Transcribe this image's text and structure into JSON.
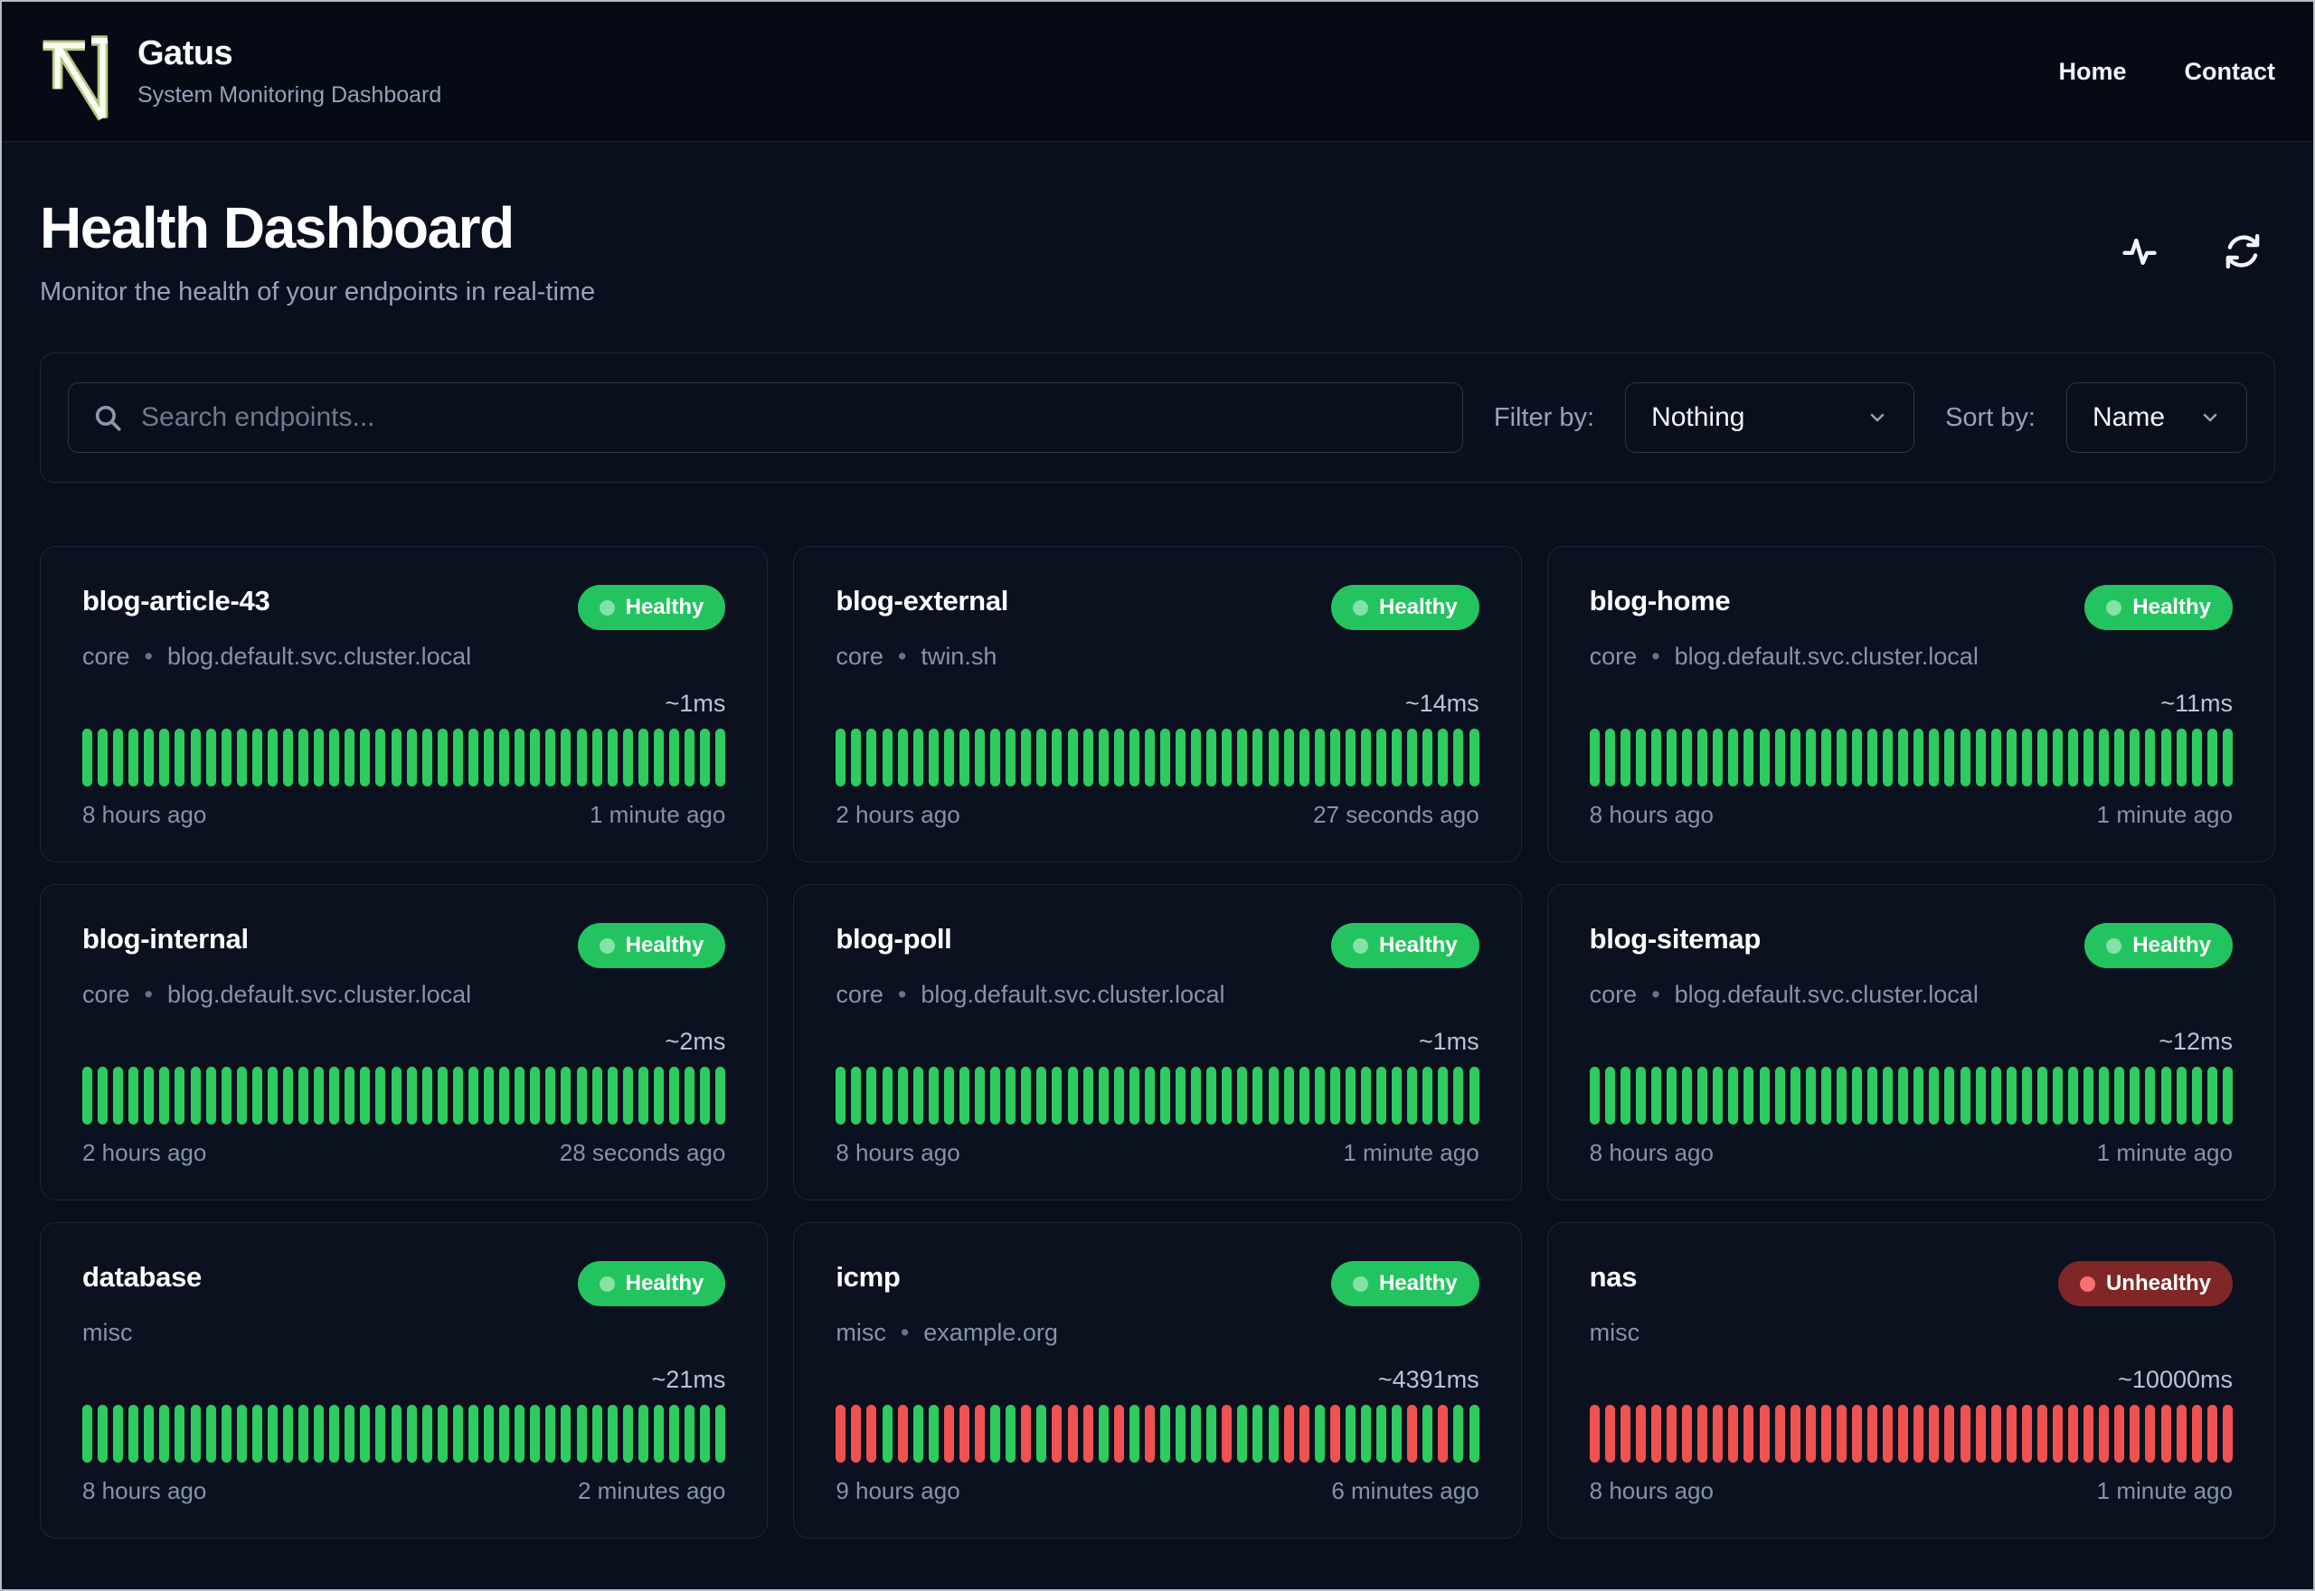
{
  "header": {
    "app_title": "Gatus",
    "app_subtitle": "System Monitoring Dashboard",
    "nav": [
      {
        "label": "Home"
      },
      {
        "label": "Contact"
      }
    ]
  },
  "page": {
    "title": "Health Dashboard",
    "subtitle": "Monitor the health of your endpoints in real-time"
  },
  "toolbar": {
    "search_placeholder": "Search endpoints...",
    "filter_label": "Filter by:",
    "filter_value": "Nothing",
    "sort_label": "Sort by:",
    "sort_value": "Name"
  },
  "icons": {
    "header_right": [
      "activity-icon",
      "refresh-icon"
    ],
    "search": "search-icon"
  },
  "colors": {
    "badge_healthy": "#23c45f",
    "badge_unhealthy": "#7f2727",
    "dot_healthy": "#83e2a5",
    "dot_unhealthy": "#f87171",
    "bar_up": "#2ecb5e",
    "bar_down": "#f05252",
    "logo_outline": "#b5c87c",
    "logo_fill": "#fbfdf4"
  },
  "cards": {
    "separator": "•",
    "endpoints": [
      {
        "name": "blog-article-43",
        "group": "core",
        "url": "blog.default.svc.cluster.local",
        "status": "Healthy",
        "latency": "~1ms",
        "oldest": "8 hours ago",
        "newest": "1 minute ago",
        "history": "UUUUUUUUUUUUUUUUUUUUUUUUUUUUUUUUUUUUUUUUUU"
      },
      {
        "name": "blog-external",
        "group": "core",
        "url": "twin.sh",
        "status": "Healthy",
        "latency": "~14ms",
        "oldest": "2 hours ago",
        "newest": "27 seconds ago",
        "history": "UUUUUUUUUUUUUUUUUUUUUUUUUUUUUUUUUUUUUUUUUU"
      },
      {
        "name": "blog-home",
        "group": "core",
        "url": "blog.default.svc.cluster.local",
        "status": "Healthy",
        "latency": "~11ms",
        "oldest": "8 hours ago",
        "newest": "1 minute ago",
        "history": "UUUUUUUUUUUUUUUUUUUUUUUUUUUUUUUUUUUUUUUUUU"
      },
      {
        "name": "blog-internal",
        "group": "core",
        "url": "blog.default.svc.cluster.local",
        "status": "Healthy",
        "latency": "~2ms",
        "oldest": "2 hours ago",
        "newest": "28 seconds ago",
        "history": "UUUUUUUUUUUUUUUUUUUUUUUUUUUUUUUUUUUUUUUUUU"
      },
      {
        "name": "blog-poll",
        "group": "core",
        "url": "blog.default.svc.cluster.local",
        "status": "Healthy",
        "latency": "~1ms",
        "oldest": "8 hours ago",
        "newest": "1 minute ago",
        "history": "UUUUUUUUUUUUUUUUUUUUUUUUUUUUUUUUUUUUUUUUUU"
      },
      {
        "name": "blog-sitemap",
        "group": "core",
        "url": "blog.default.svc.cluster.local",
        "status": "Healthy",
        "latency": "~12ms",
        "oldest": "8 hours ago",
        "newest": "1 minute ago",
        "history": "UUUUUUUUUUUUUUUUUUUUUUUUUUUUUUUUUUUUUUUUUU"
      },
      {
        "name": "database",
        "group": "misc",
        "url": null,
        "status": "Healthy",
        "latency": "~21ms",
        "oldest": "8 hours ago",
        "newest": "2 minutes ago",
        "history": "UUUUUUUUUUUUUUUUUUUUUUUUUUUUUUUUUUUUUUUUUU"
      },
      {
        "name": "icmp",
        "group": "misc",
        "url": "example.org",
        "status": "Healthy",
        "latency": "~4391ms",
        "oldest": "9 hours ago",
        "newest": "6 minutes ago",
        "history": "DDDUDUUDDDUUDUDDDUDUDUUUUDUUUDDUDUUUUDUDUU"
      },
      {
        "name": "nas",
        "group": "misc",
        "url": null,
        "status": "Unhealthy",
        "latency": "~10000ms",
        "oldest": "8 hours ago",
        "newest": "1 minute ago",
        "history": "DDDDDDDDDDDDDDDDDDDDDDDDDDDDDDDDDDDDDDDDDD"
      }
    ]
  }
}
